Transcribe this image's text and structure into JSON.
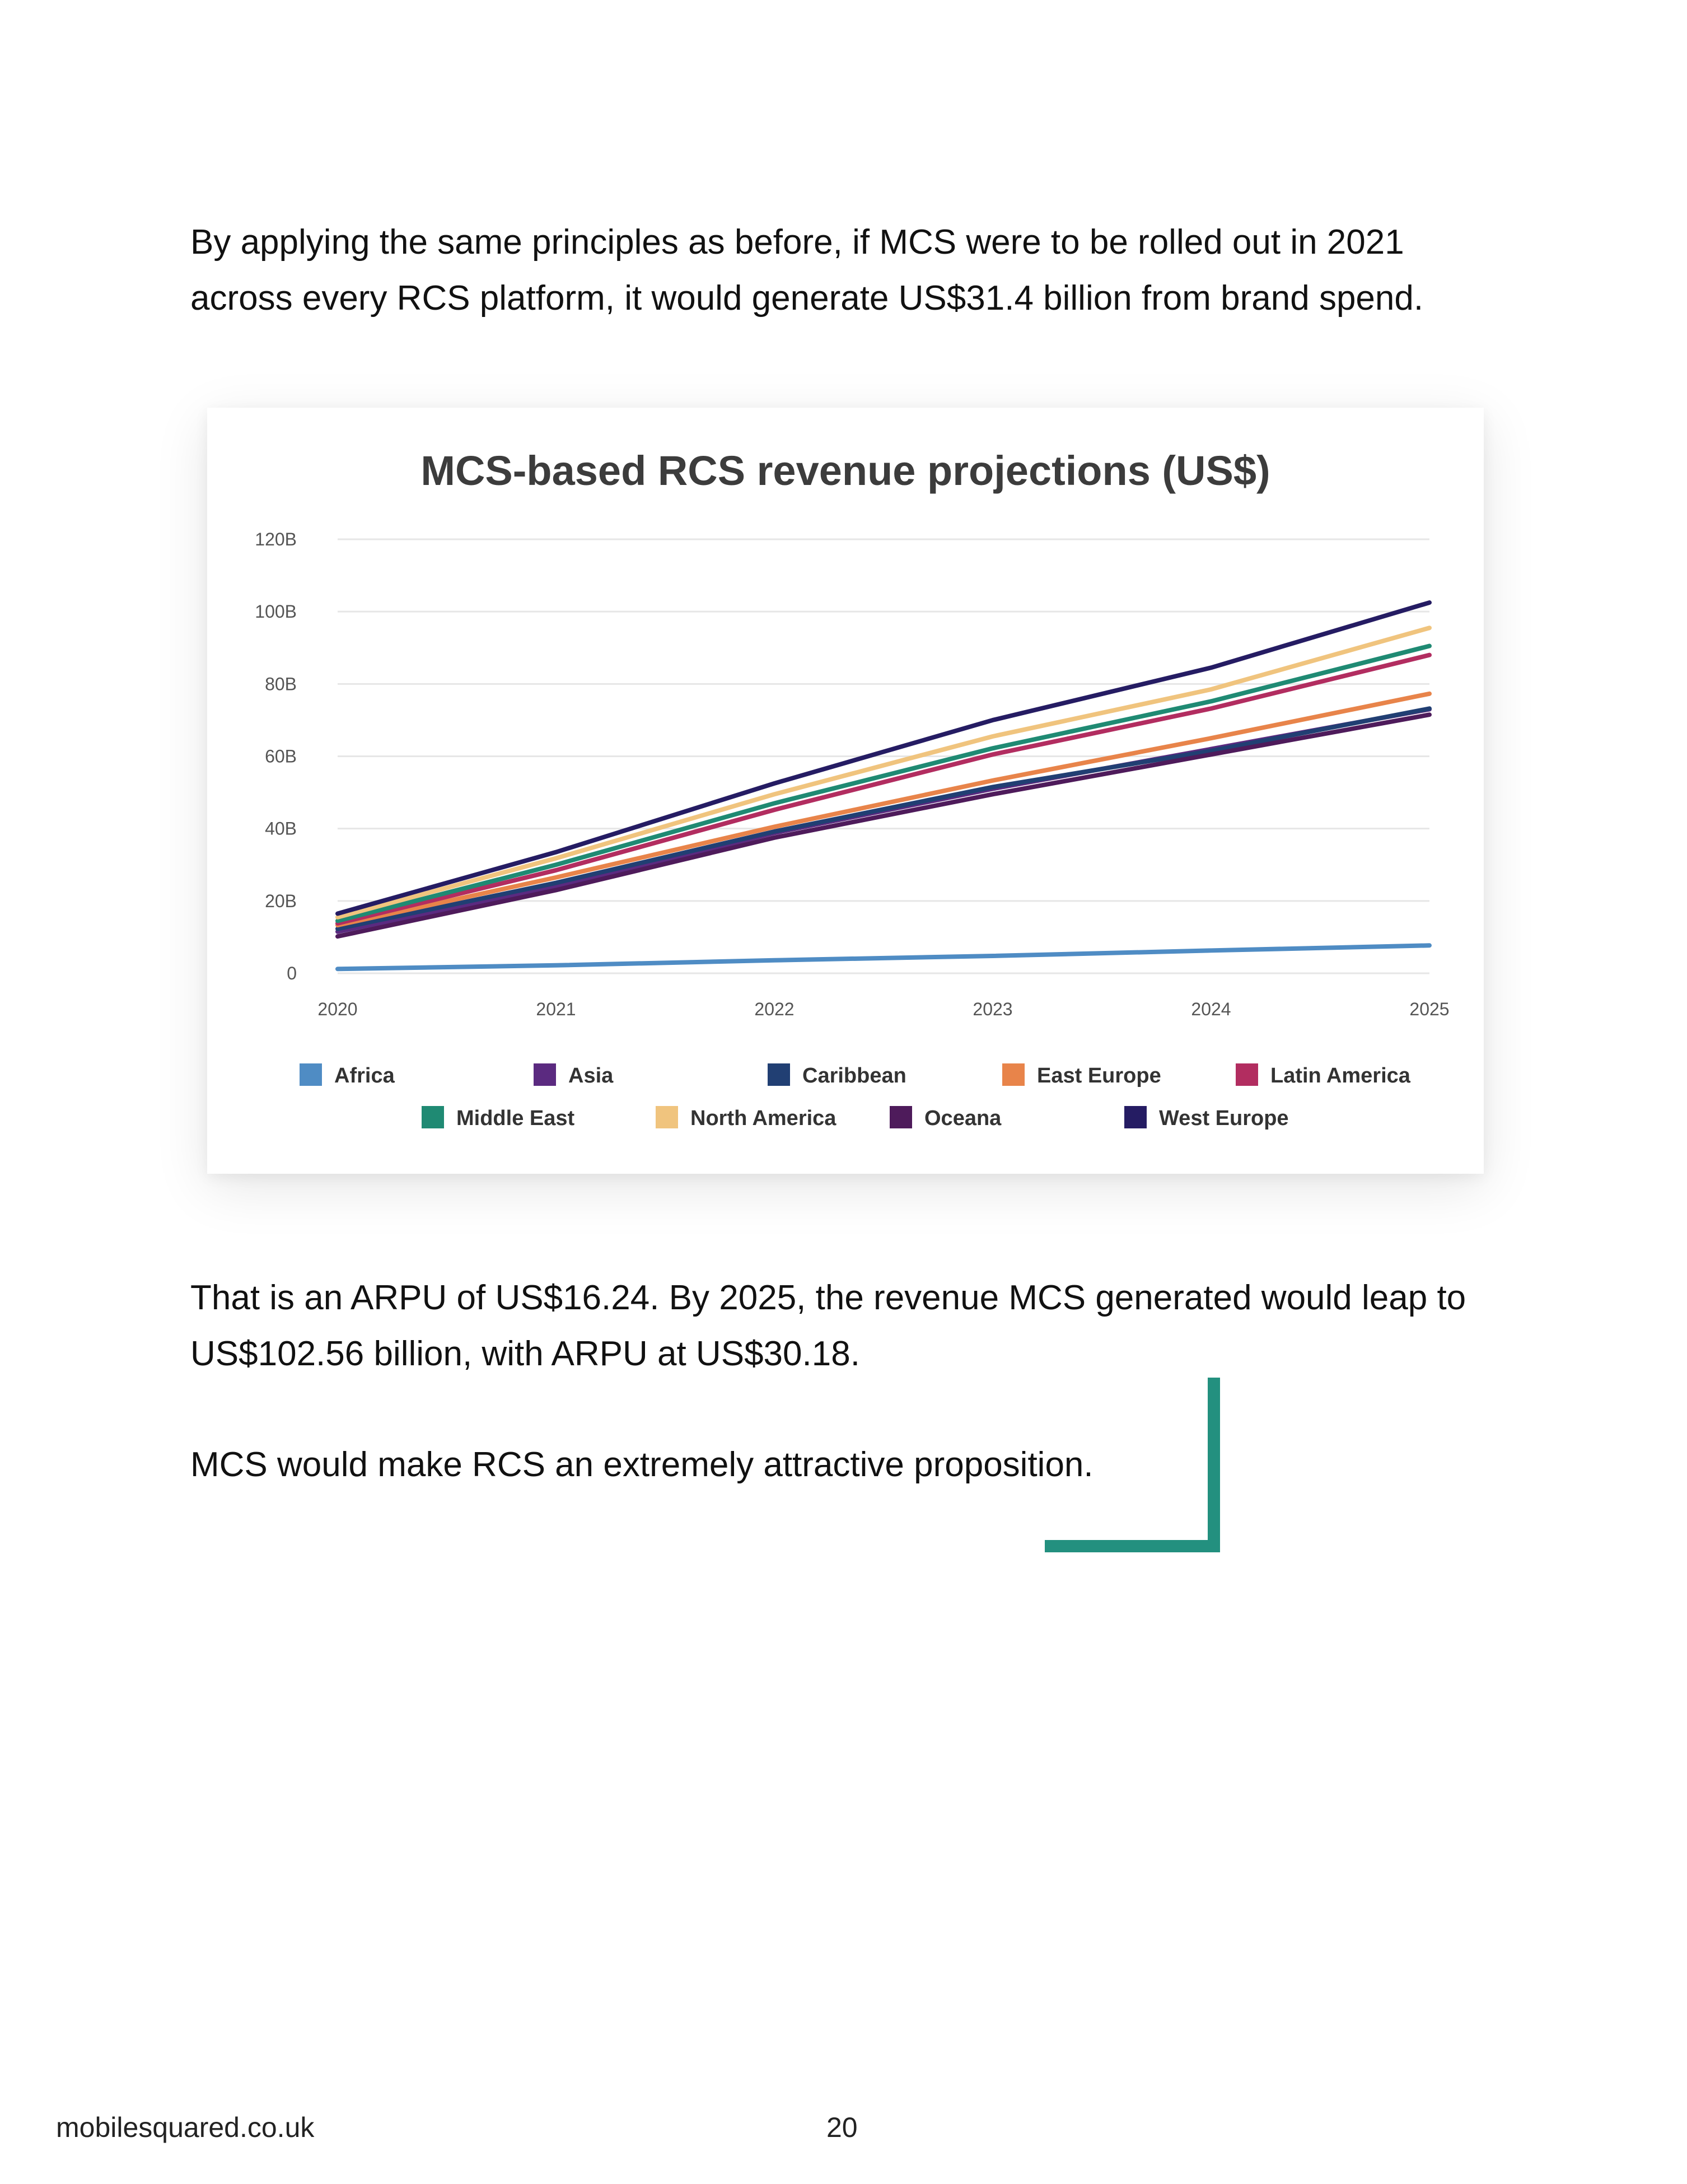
{
  "paragraphs": {
    "intro": [
      "By applying the same principles as before, if MCS were to be rolled out in 2021",
      "across every RCS platform, it would generate US$31.4 billion from brand spend."
    ],
    "arpu": [
      "That is an ARPU of US$16.24. By 2025, the revenue MCS generated would leap to",
      "US$102.56 billion, with ARPU at US$30.18."
    ],
    "closing": [
      "MCS would make RCS an extremely attractive proposition."
    ]
  },
  "chart_data": {
    "type": "line",
    "title": "MCS-based RCS revenue projections (US$)",
    "xlabel": "",
    "ylabel": "",
    "x": [
      "2020",
      "2021",
      "2022",
      "2023",
      "2024",
      "2025"
    ],
    "y_ticks": [
      "0",
      "20B",
      "40B",
      "60B",
      "80B",
      "100B",
      "120B"
    ],
    "ylim": [
      0,
      120
    ],
    "y_unit": "B",
    "grid": true,
    "legend": "bottom",
    "series": [
      {
        "name": "Africa",
        "color": "#4f8cc4",
        "values": [
          1.2,
          2.2,
          3.6,
          4.8,
          6.3,
          7.7
        ]
      },
      {
        "name": "Asia",
        "color": "#5b2a80",
        "values": [
          11.5,
          24.0,
          38.8,
          51.0,
          62.0,
          73.0
        ]
      },
      {
        "name": "Caribbean",
        "color": "#213f73",
        "values": [
          12.3,
          25.0,
          39.2,
          51.5,
          61.5,
          73.2
        ]
      },
      {
        "name": "East Europe",
        "color": "#e8844a",
        "values": [
          13.3,
          26.5,
          40.5,
          53.3,
          65.0,
          77.3
        ]
      },
      {
        "name": "Latin America",
        "color": "#b22d60",
        "values": [
          13.8,
          28.5,
          45.2,
          60.5,
          73.2,
          88.0
        ]
      },
      {
        "name": "Middle East",
        "color": "#1f8a73",
        "values": [
          14.5,
          30.0,
          47.0,
          62.2,
          75.2,
          90.5
        ]
      },
      {
        "name": "North America",
        "color": "#f0c47e",
        "values": [
          15.5,
          31.8,
          49.5,
          65.5,
          78.5,
          95.5
        ]
      },
      {
        "name": "Oceana",
        "color": "#4e1b5b",
        "values": [
          10.2,
          23.0,
          37.5,
          49.5,
          60.5,
          71.5
        ]
      },
      {
        "name": "West Europe",
        "color": "#251c63",
        "values": [
          16.5,
          33.5,
          52.5,
          70.0,
          84.5,
          102.5
        ]
      }
    ]
  },
  "footer": {
    "site": "mobilesquared.co.uk",
    "page": "20"
  },
  "colors": {
    "accent_bracket": "#23907f"
  }
}
